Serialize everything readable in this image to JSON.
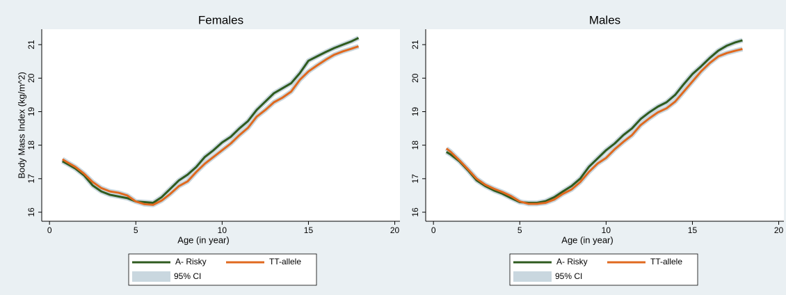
{
  "chart_data": [
    {
      "type": "line",
      "title": "Females",
      "xlabel": "Age (in year)",
      "ylabel": "Body Mass Index (kg/m^2)",
      "x": [
        0.75,
        1,
        1.5,
        2,
        2.5,
        3,
        3.5,
        4,
        4.5,
        5,
        5.5,
        6,
        6.5,
        7,
        7.5,
        8,
        8.5,
        9,
        9.5,
        10,
        10.5,
        11,
        11.5,
        12,
        12.5,
        13,
        13.5,
        14,
        14.5,
        15,
        15.5,
        16,
        16.5,
        17,
        17.5,
        17.9
      ],
      "series": [
        {
          "name": "A- Risky",
          "color": "#2f5b1f",
          "values": [
            17.52,
            17.45,
            17.3,
            17.1,
            16.8,
            16.62,
            16.52,
            16.47,
            16.42,
            16.32,
            16.3,
            16.28,
            16.45,
            16.7,
            16.95,
            17.12,
            17.35,
            17.65,
            17.85,
            18.08,
            18.25,
            18.5,
            18.72,
            19.05,
            19.3,
            19.55,
            19.7,
            19.85,
            20.15,
            20.52,
            20.65,
            20.78,
            20.9,
            21.0,
            21.1,
            21.2
          ]
        },
        {
          "name": "TT-allele",
          "color": "#e0691f",
          "values": [
            17.58,
            17.5,
            17.35,
            17.15,
            16.9,
            16.72,
            16.62,
            16.58,
            16.5,
            16.32,
            16.24,
            16.22,
            16.35,
            16.55,
            16.78,
            16.92,
            17.2,
            17.45,
            17.65,
            17.85,
            18.05,
            18.3,
            18.52,
            18.85,
            19.05,
            19.28,
            19.42,
            19.6,
            19.95,
            20.2,
            20.38,
            20.55,
            20.7,
            20.8,
            20.88,
            20.95
          ]
        }
      ],
      "ci": {
        "name": "95% CI",
        "color": "#c9d7df"
      },
      "xlim": [
        -0.45,
        20.3
      ],
      "xticks": [
        0,
        5,
        10,
        15,
        20
      ],
      "ylim": [
        15.73,
        21.46
      ],
      "yticks": [
        16,
        17,
        18,
        19,
        20,
        21
      ]
    },
    {
      "type": "line",
      "title": "Males",
      "xlabel": "Age (in year)",
      "x": [
        0.75,
        1,
        1.5,
        2,
        2.5,
        3,
        3.5,
        4,
        4.5,
        5,
        5.5,
        6,
        6.5,
        7,
        7.5,
        8,
        8.5,
        9,
        9.5,
        10,
        10.5,
        11,
        11.5,
        12,
        12.5,
        13,
        13.5,
        14,
        14.5,
        15,
        15.5,
        16,
        16.5,
        17,
        17.5,
        17.9
      ],
      "series": [
        {
          "name": "A- Risky",
          "color": "#2f5b1f",
          "values": [
            17.8,
            17.72,
            17.52,
            17.25,
            16.95,
            16.78,
            16.65,
            16.55,
            16.42,
            16.3,
            16.28,
            16.28,
            16.33,
            16.45,
            16.62,
            16.78,
            17.0,
            17.35,
            17.6,
            17.85,
            18.05,
            18.3,
            18.5,
            18.78,
            18.98,
            19.15,
            19.28,
            19.5,
            19.82,
            20.12,
            20.35,
            20.6,
            20.82,
            20.97,
            21.07,
            21.13
          ]
        },
        {
          "name": "TT-allele",
          "color": "#e0691f",
          "values": [
            17.9,
            17.8,
            17.55,
            17.28,
            17.0,
            16.82,
            16.7,
            16.6,
            16.48,
            16.32,
            16.25,
            16.25,
            16.28,
            16.38,
            16.55,
            16.68,
            16.9,
            17.2,
            17.45,
            17.62,
            17.88,
            18.1,
            18.3,
            18.6,
            18.8,
            18.98,
            19.1,
            19.3,
            19.6,
            19.9,
            20.2,
            20.45,
            20.65,
            20.75,
            20.82,
            20.87
          ]
        }
      ],
      "ci": {
        "name": "95% CI",
        "color": "#c9d7df"
      },
      "xlim": [
        -0.45,
        20.3
      ],
      "xticks": [
        0,
        5,
        10,
        15,
        20
      ],
      "ylim": [
        15.73,
        21.46
      ],
      "yticks": [
        16,
        17,
        18,
        19,
        20,
        21
      ]
    }
  ]
}
